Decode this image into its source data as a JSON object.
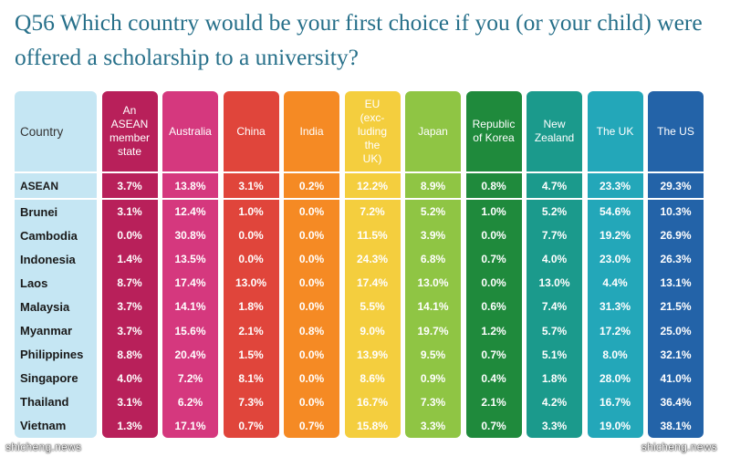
{
  "title": "Q56 Which country would be your first choice if you (or your child) were offered a scholarship to a university?",
  "watermark": "shicheng.news",
  "chart_data": {
    "type": "table",
    "title": "Q56 Which country would be your first choice if you (or your child) were offered a scholarship to a university?",
    "row_header_label": "Country",
    "columns": [
      {
        "label": "An\nASEAN\nmember\nstate",
        "color": "#b8205a"
      },
      {
        "label": "Australia",
        "color": "#d5387e"
      },
      {
        "label": "China",
        "color": "#e0453b"
      },
      {
        "label": "India",
        "color": "#f58a24"
      },
      {
        "label": "EU\n(exc-\nluding\nthe\nUK)",
        "color": "#f4ce3e"
      },
      {
        "label": "Japan",
        "color": "#8fc544"
      },
      {
        "label": "Republic\nof Korea",
        "color": "#1f8a3c"
      },
      {
        "label": "New\nZealand",
        "color": "#1b9a8c"
      },
      {
        "label": "The UK",
        "color": "#23a7b9"
      },
      {
        "label": "The US",
        "color": "#2363a8"
      }
    ],
    "row_header_color": "#c5e6f3",
    "rows": [
      {
        "name": "ASEAN",
        "values": [
          "3.7%",
          "13.8%",
          "3.1%",
          "0.2%",
          "12.2%",
          "8.9%",
          "0.8%",
          "4.7%",
          "23.3%",
          "29.3%"
        ]
      },
      {
        "name": "Brunei",
        "values": [
          "3.1%",
          "12.4%",
          "1.0%",
          "0.0%",
          "7.2%",
          "5.2%",
          "1.0%",
          "5.2%",
          "54.6%",
          "10.3%"
        ]
      },
      {
        "name": "Cambodia",
        "values": [
          "0.0%",
          "30.8%",
          "0.0%",
          "0.0%",
          "11.5%",
          "3.9%",
          "0.0%",
          "7.7%",
          "19.2%",
          "26.9%"
        ]
      },
      {
        "name": "Indonesia",
        "values": [
          "1.4%",
          "13.5%",
          "0.0%",
          "0.0%",
          "24.3%",
          "6.8%",
          "0.7%",
          "4.0%",
          "23.0%",
          "26.3%"
        ]
      },
      {
        "name": "Laos",
        "values": [
          "8.7%",
          "17.4%",
          "13.0%",
          "0.0%",
          "17.4%",
          "13.0%",
          "0.0%",
          "13.0%",
          "4.4%",
          "13.1%"
        ]
      },
      {
        "name": "Malaysia",
        "values": [
          "3.7%",
          "14.1%",
          "1.8%",
          "0.0%",
          "5.5%",
          "14.1%",
          "0.6%",
          "7.4%",
          "31.3%",
          "21.5%"
        ]
      },
      {
        "name": "Myanmar",
        "values": [
          "3.7%",
          "15.6%",
          "2.1%",
          "0.8%",
          "9.0%",
          "19.7%",
          "1.2%",
          "5.7%",
          "17.2%",
          "25.0%"
        ]
      },
      {
        "name": "Philippines",
        "values": [
          "8.8%",
          "20.4%",
          "1.5%",
          "0.0%",
          "13.9%",
          "9.5%",
          "0.7%",
          "5.1%",
          "8.0%",
          "32.1%"
        ]
      },
      {
        "name": "Singapore",
        "values": [
          "4.0%",
          "7.2%",
          "8.1%",
          "0.0%",
          "8.6%",
          "0.9%",
          "0.4%",
          "1.8%",
          "28.0%",
          "41.0%"
        ]
      },
      {
        "name": "Thailand",
        "values": [
          "3.1%",
          "6.2%",
          "7.3%",
          "0.0%",
          "16.7%",
          "7.3%",
          "2.1%",
          "4.2%",
          "16.7%",
          "36.4%"
        ]
      },
      {
        "name": "Vietnam",
        "values": [
          "1.3%",
          "17.1%",
          "0.7%",
          "0.7%",
          "15.8%",
          "3.3%",
          "0.7%",
          "3.3%",
          "19.0%",
          "38.1%"
        ]
      }
    ]
  }
}
